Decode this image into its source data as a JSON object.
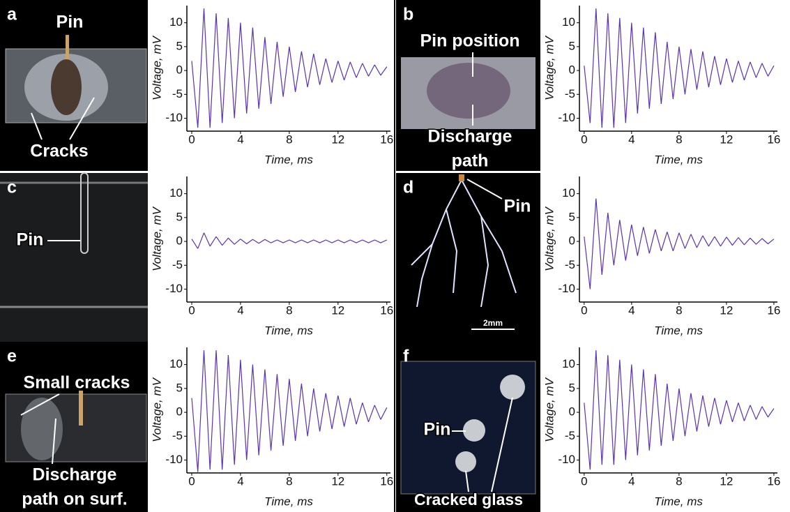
{
  "chart_data": [
    {
      "type": "line",
      "y_label": "Voltage, mV",
      "x_label": "Time, ms",
      "color": "#5a32b4",
      "xlim": [
        -0.4,
        16.3
      ],
      "ylim": [
        -12.7,
        13.6
      ],
      "xticks": [
        0,
        4,
        8,
        12,
        16
      ],
      "yticks": [
        -10,
        -5,
        0,
        5,
        10
      ],
      "x": [
        0,
        0.5,
        1,
        1.5,
        2,
        2.5,
        3,
        3.5,
        4,
        4.5,
        5,
        5.5,
        6,
        6.5,
        7,
        7.5,
        8,
        8.5,
        9,
        9.5,
        10,
        10.5,
        11,
        11.5,
        12,
        12.5,
        13,
        13.5,
        14,
        14.5,
        15,
        15.5,
        16
      ],
      "values": [
        2,
        -12,
        13,
        -12,
        12,
        -11,
        11,
        -10,
        10,
        -9,
        9,
        -8,
        7,
        -7,
        6,
        -5.5,
        5,
        -4.5,
        4,
        -3.5,
        3.5,
        -3,
        2.5,
        -2.5,
        2,
        -2,
        1.8,
        -1.5,
        1.5,
        -1.2,
        1.2,
        -1,
        0.8
      ]
    },
    {
      "type": "line",
      "y_label": "Voltage, mV",
      "x_label": "Time, ms",
      "color": "#5a32b4",
      "xlim": [
        -0.4,
        16.3
      ],
      "ylim": [
        -12.7,
        13.6
      ],
      "xticks": [
        0,
        4,
        8,
        12,
        16
      ],
      "yticks": [
        -10,
        -5,
        0,
        5,
        10
      ],
      "x": [
        0,
        0.5,
        1,
        1.5,
        2,
        2.5,
        3,
        3.5,
        4,
        4.5,
        5,
        5.5,
        6,
        6.5,
        7,
        7.5,
        8,
        8.5,
        9,
        9.5,
        10,
        10.5,
        11,
        11.5,
        12,
        12.5,
        13,
        13.5,
        14,
        14.5,
        15,
        15.5,
        16
      ],
      "values": [
        1,
        -11,
        13,
        -12,
        12,
        -12,
        11,
        -11,
        10,
        -9,
        9,
        -8,
        8,
        -7,
        6,
        -6,
        5,
        -5,
        4.5,
        -4,
        4,
        -3.5,
        3,
        -3,
        2.5,
        -2.5,
        2,
        -2,
        1.8,
        -1.5,
        1.5,
        -1.2,
        1
      ]
    },
    {
      "type": "line",
      "y_label": "Voltage, mV",
      "x_label": "Time, ms",
      "color": "#5a32b4",
      "xlim": [
        -0.4,
        16.3
      ],
      "ylim": [
        -12.7,
        13.6
      ],
      "xticks": [
        0,
        4,
        8,
        12,
        16
      ],
      "yticks": [
        -10,
        -5,
        0,
        5,
        10
      ],
      "x": [
        0,
        0.5,
        1,
        1.5,
        2,
        2.5,
        3,
        3.5,
        4,
        4.5,
        5,
        5.5,
        6,
        6.5,
        7,
        7.5,
        8,
        8.5,
        9,
        9.5,
        10,
        10.5,
        11,
        11.5,
        12,
        12.5,
        13,
        13.5,
        14,
        14.5,
        15,
        15.5,
        16
      ],
      "values": [
        0.5,
        -1.5,
        1.8,
        -1,
        1,
        -0.8,
        0.7,
        -0.6,
        0.5,
        -0.5,
        0.4,
        -0.4,
        0.4,
        -0.3,
        0.3,
        -0.3,
        0.3,
        -0.3,
        0.3,
        -0.3,
        0.3,
        -0.3,
        0.3,
        -0.3,
        0.3,
        -0.3,
        0.3,
        -0.3,
        0.3,
        -0.3,
        0.3,
        -0.3,
        0.3
      ]
    },
    {
      "type": "line",
      "y_label": "Voltage, mV",
      "x_label": "Time, ms",
      "color": "#5a32b4",
      "xlim": [
        -0.4,
        16.3
      ],
      "ylim": [
        -12.7,
        13.6
      ],
      "xticks": [
        0,
        4,
        8,
        12,
        16
      ],
      "yticks": [
        -10,
        -5,
        0,
        5,
        10
      ],
      "x": [
        0,
        0.5,
        1,
        1.5,
        2,
        2.5,
        3,
        3.5,
        4,
        4.5,
        5,
        5.5,
        6,
        6.5,
        7,
        7.5,
        8,
        8.5,
        9,
        9.5,
        10,
        10.5,
        11,
        11.5,
        12,
        12.5,
        13,
        13.5,
        14,
        14.5,
        15,
        15.5,
        16
      ],
      "values": [
        1,
        -10,
        9,
        -7,
        6,
        -5,
        4.5,
        -4,
        3.5,
        -3,
        3,
        -2.5,
        2.5,
        -2,
        2,
        -2,
        1.8,
        -1.5,
        1.5,
        -1.3,
        1.2,
        -1,
        1,
        -1,
        0.9,
        -0.8,
        0.8,
        -0.7,
        0.7,
        -0.6,
        0.6,
        -0.5,
        0.5
      ]
    },
    {
      "type": "line",
      "y_label": "Voltage, mV",
      "x_label": "Time, ms",
      "color": "#5a32b4",
      "xlim": [
        -0.4,
        16.3
      ],
      "ylim": [
        -12.7,
        13.6
      ],
      "xticks": [
        0,
        4,
        8,
        12,
        16
      ],
      "yticks": [
        -10,
        -5,
        0,
        5,
        10
      ],
      "x": [
        0,
        0.5,
        1,
        1.5,
        2,
        2.5,
        3,
        3.5,
        4,
        4.5,
        5,
        5.5,
        6,
        6.5,
        7,
        7.5,
        8,
        8.5,
        9,
        9.5,
        10,
        10.5,
        11,
        11.5,
        12,
        12.5,
        13,
        13.5,
        14,
        14.5,
        15,
        15.5,
        16
      ],
      "values": [
        3,
        -12.5,
        13,
        -12,
        13,
        -12,
        12,
        -11,
        11,
        -10,
        10,
        -9,
        9,
        -8,
        8,
        -7,
        7,
        -6,
        6,
        -5,
        5,
        -4,
        4,
        -3.5,
        3.5,
        -3,
        3,
        -2.5,
        2,
        -2,
        1.5,
        -1.5,
        1
      ]
    },
    {
      "type": "line",
      "y_label": "Voltage, mV",
      "x_label": "Time, ms",
      "color": "#5a32b4",
      "xlim": [
        -0.4,
        16.3
      ],
      "ylim": [
        -12.7,
        13.6
      ],
      "xticks": [
        0,
        4,
        8,
        12,
        16
      ],
      "yticks": [
        -10,
        -5,
        0,
        5,
        10
      ],
      "x": [
        0,
        0.5,
        1,
        1.5,
        2,
        2.5,
        3,
        3.5,
        4,
        4.5,
        5,
        5.5,
        6,
        6.5,
        7,
        7.5,
        8,
        8.5,
        9,
        9.5,
        10,
        10.5,
        11,
        11.5,
        12,
        12.5,
        13,
        13.5,
        14,
        14.5,
        15,
        15.5,
        16
      ],
      "values": [
        2,
        -12,
        13,
        -11,
        12,
        -11,
        11,
        -10,
        10,
        -9,
        9,
        -8,
        8,
        -7,
        6,
        -6,
        5,
        -5,
        4,
        -4,
        3.5,
        -3,
        3,
        -2.5,
        2.5,
        -2,
        2,
        -1.8,
        1.5,
        -1.5,
        1.2,
        -1,
        0.8
      ]
    }
  ],
  "panels": [
    {
      "letter": "a",
      "labels": [
        "Pin",
        "Cracks"
      ]
    },
    {
      "letter": "b",
      "labels": [
        "Pin position",
        "Discharge",
        "path"
      ]
    },
    {
      "letter": "c",
      "labels": [
        "Pin"
      ]
    },
    {
      "letter": "d",
      "labels": [
        "Pin",
        "2mm"
      ]
    },
    {
      "letter": "e",
      "labels": [
        "Small cracks",
        "Discharge",
        "path on surf."
      ]
    },
    {
      "letter": "f",
      "labels": [
        "Pin",
        "Cracked glass"
      ]
    }
  ]
}
